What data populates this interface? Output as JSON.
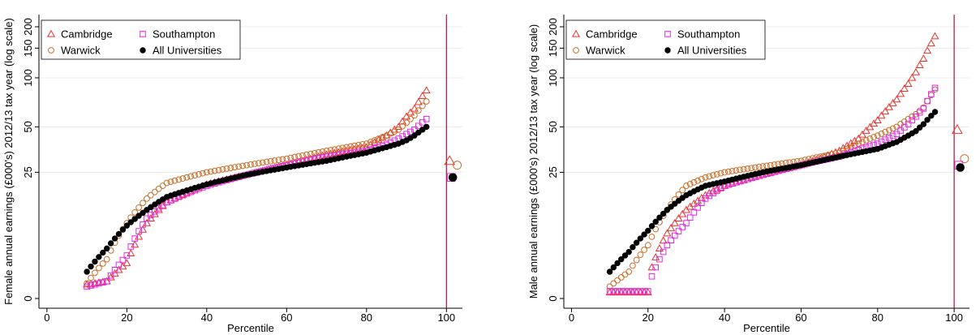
{
  "chart_data": [
    {
      "type": "scatter",
      "xlabel": "Percentile",
      "ylabel": "Female annual earnings (£000's) 2012/13 tax year (log scale)",
      "xticks": [
        0,
        20,
        40,
        60,
        80,
        100
      ],
      "yticks": [
        0,
        25,
        50,
        100,
        150,
        200
      ],
      "xlim": [
        -2,
        104
      ],
      "y_scale": "log",
      "grid": "horizontal",
      "legend": "top-left",
      "reference_line_x": 100,
      "series": [
        {
          "name": "Cambridge",
          "marker": "triangle",
          "color": "#e8332c",
          "percentile_range": [
            10,
            95
          ],
          "anchors": [
            [
              10,
              1.2
            ],
            [
              15,
              1.5
            ],
            [
              20,
              3.5
            ],
            [
              25,
              10
            ],
            [
              30,
              15
            ],
            [
              40,
              20.5
            ],
            [
              50,
              24
            ],
            [
              60,
              28
            ],
            [
              70,
              33
            ],
            [
              80,
              37
            ],
            [
              85,
              44
            ],
            [
              88,
              50
            ],
            [
              90,
              58
            ],
            [
              92,
              65
            ],
            [
              95,
              84
            ]
          ],
          "all_universities_point": 30
        },
        {
          "name": "Warwick",
          "marker": "circle-open",
          "color": "#c8702c",
          "percentile_range": [
            10,
            95
          ],
          "anchors": [
            [
              10,
              1.3
            ],
            [
              15,
              4
            ],
            [
              20,
              10
            ],
            [
              25,
              16
            ],
            [
              30,
              21
            ],
            [
              40,
              25
            ],
            [
              50,
              28
            ],
            [
              60,
              31
            ],
            [
              70,
              35
            ],
            [
              80,
              39
            ],
            [
              85,
              44
            ],
            [
              88,
              48
            ],
            [
              90,
              53
            ],
            [
              92,
              59
            ],
            [
              95,
              72
            ]
          ],
          "all_universities_point": 28
        },
        {
          "name": "Southampton",
          "marker": "square-open",
          "color": "#e228e6",
          "percentile_range": [
            10,
            95
          ],
          "anchors": [
            [
              10,
              1.0
            ],
            [
              15,
              1.5
            ],
            [
              20,
              4.5
            ],
            [
              25,
              11
            ],
            [
              30,
              15
            ],
            [
              40,
              20
            ],
            [
              50,
              24
            ],
            [
              60,
              28
            ],
            [
              70,
              32
            ],
            [
              80,
              35
            ],
            [
              85,
              38.5
            ],
            [
              88,
              42
            ],
            [
              90,
              45
            ],
            [
              92,
              48
            ],
            [
              95,
              56
            ]
          ],
          "all_universities_point": 23
        },
        {
          "name": "All Universities",
          "marker": "circle-filled",
          "color": "#000000",
          "percentile_range": [
            10,
            95
          ],
          "anchors": [
            [
              10,
              2.5
            ],
            [
              15,
              5.5
            ],
            [
              20,
              9.5
            ],
            [
              25,
              13
            ],
            [
              30,
              16.5
            ],
            [
              40,
              20.5
            ],
            [
              50,
              24
            ],
            [
              60,
              27
            ],
            [
              70,
              30
            ],
            [
              80,
              34
            ],
            [
              85,
              37
            ],
            [
              88,
              39
            ],
            [
              90,
              41
            ],
            [
              92,
              44
            ],
            [
              95,
              50
            ]
          ],
          "all_universities_point": 23
        }
      ]
    },
    {
      "type": "scatter",
      "xlabel": "Percentile",
      "ylabel": "Male annual earnings (£000's) 2012/13 tax year (log scale)",
      "xticks": [
        0,
        20,
        40,
        60,
        80,
        100
      ],
      "yticks": [
        0,
        25,
        50,
        100,
        150,
        200
      ],
      "xlim": [
        -2,
        104
      ],
      "y_scale": "log",
      "grid": "horizontal",
      "legend": "top-left",
      "reference_line_x": 100,
      "series": [
        {
          "name": "Cambridge",
          "marker": "triangle",
          "color": "#e8332c",
          "percentile_range": [
            10,
            95
          ],
          "anchors": [
            [
              10,
              0.5
            ],
            [
              20,
              0.5
            ],
            [
              21,
              3
            ],
            [
              25,
              8
            ],
            [
              30,
              13
            ],
            [
              35,
              17
            ],
            [
              40,
              20
            ],
            [
              50,
              24
            ],
            [
              60,
              28
            ],
            [
              65,
              31
            ],
            [
              70,
              35
            ],
            [
              75,
              42
            ],
            [
              80,
              55
            ],
            [
              85,
              74
            ],
            [
              88,
              92
            ],
            [
              90,
              108
            ],
            [
              92,
              130
            ],
            [
              94,
              160
            ],
            [
              95,
              176
            ]
          ],
          "all_universities_point": 48
        },
        {
          "name": "Warwick",
          "marker": "circle-open",
          "color": "#c8702c",
          "percentile_range": [
            10,
            95
          ],
          "anchors": [
            [
              10,
              1.0
            ],
            [
              15,
              2.5
            ],
            [
              20,
              6
            ],
            [
              25,
              13
            ],
            [
              30,
              20
            ],
            [
              35,
              23
            ],
            [
              40,
              25
            ],
            [
              50,
              27.5
            ],
            [
              60,
              30
            ],
            [
              70,
              34
            ],
            [
              80,
              44
            ],
            [
              85,
              50
            ],
            [
              88,
              56
            ],
            [
              90,
              60
            ],
            [
              92,
              66
            ],
            [
              95,
              85
            ]
          ],
          "all_universities_point": 31
        },
        {
          "name": "Southampton",
          "marker": "square-open",
          "color": "#e228e6",
          "percentile_range": [
            10,
            95
          ],
          "anchors": [
            [
              10,
              0.6
            ],
            [
              20,
              0.6
            ],
            [
              21,
              2
            ],
            [
              25,
              6
            ],
            [
              30,
              10
            ],
            [
              35,
              16
            ],
            [
              40,
              20
            ],
            [
              50,
              24
            ],
            [
              60,
              28
            ],
            [
              70,
              32
            ],
            [
              80,
              39
            ],
            [
              85,
              45
            ],
            [
              88,
              52
            ],
            [
              90,
              58
            ],
            [
              92,
              65
            ],
            [
              95,
              87
            ]
          ],
          "all_universities_point": 28
        },
        {
          "name": "All Universities",
          "marker": "circle-filled",
          "color": "#000000",
          "percentile_range": [
            10,
            95
          ],
          "anchors": [
            [
              10,
              2.5
            ],
            [
              15,
              5
            ],
            [
              20,
              8.5
            ],
            [
              25,
              13
            ],
            [
              30,
              17
            ],
            [
              35,
              20
            ],
            [
              40,
              21.5
            ],
            [
              50,
              25
            ],
            [
              60,
              28
            ],
            [
              70,
              32
            ],
            [
              80,
              36
            ],
            [
              85,
              40
            ],
            [
              88,
              44
            ],
            [
              90,
              47
            ],
            [
              92,
              52
            ],
            [
              95,
              62
            ]
          ],
          "all_universities_point": 27
        }
      ]
    }
  ]
}
